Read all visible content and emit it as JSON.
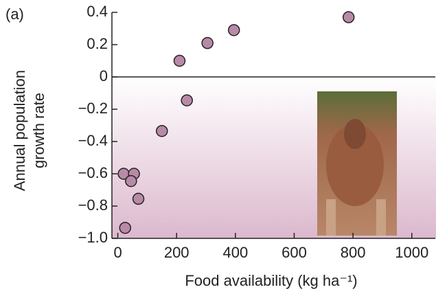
{
  "chart_data": {
    "type": "scatter",
    "panel_label": "(a)",
    "xlabel": "Food availability (kg ha⁻¹)",
    "ylabel": [
      "Annual population",
      "growth rate"
    ],
    "x": [
      785,
      395,
      305,
      210,
      235,
      150,
      20,
      55,
      45,
      70,
      25
    ],
    "values": [
      0.37,
      0.29,
      0.21,
      0.1,
      -0.145,
      -0.335,
      -0.6,
      -0.6,
      -0.645,
      -0.755,
      -0.935
    ],
    "color": "#b88aa8",
    "xlim": [
      -20,
      1080
    ],
    "xticks": [
      0,
      200,
      400,
      600,
      800,
      1000
    ],
    "ylim": [
      -1.0,
      0.4
    ],
    "yticks": [
      {
        "value": -1.0,
        "label": "−1.0"
      },
      {
        "value": -0.8,
        "label": "−0.8"
      },
      {
        "value": -0.6,
        "label": "−0.6"
      },
      {
        "value": -0.4,
        "label": "−0.4"
      },
      {
        "value": -0.2,
        "label": "−0.2"
      },
      0,
      0.2,
      0.4
    ]
  }
}
